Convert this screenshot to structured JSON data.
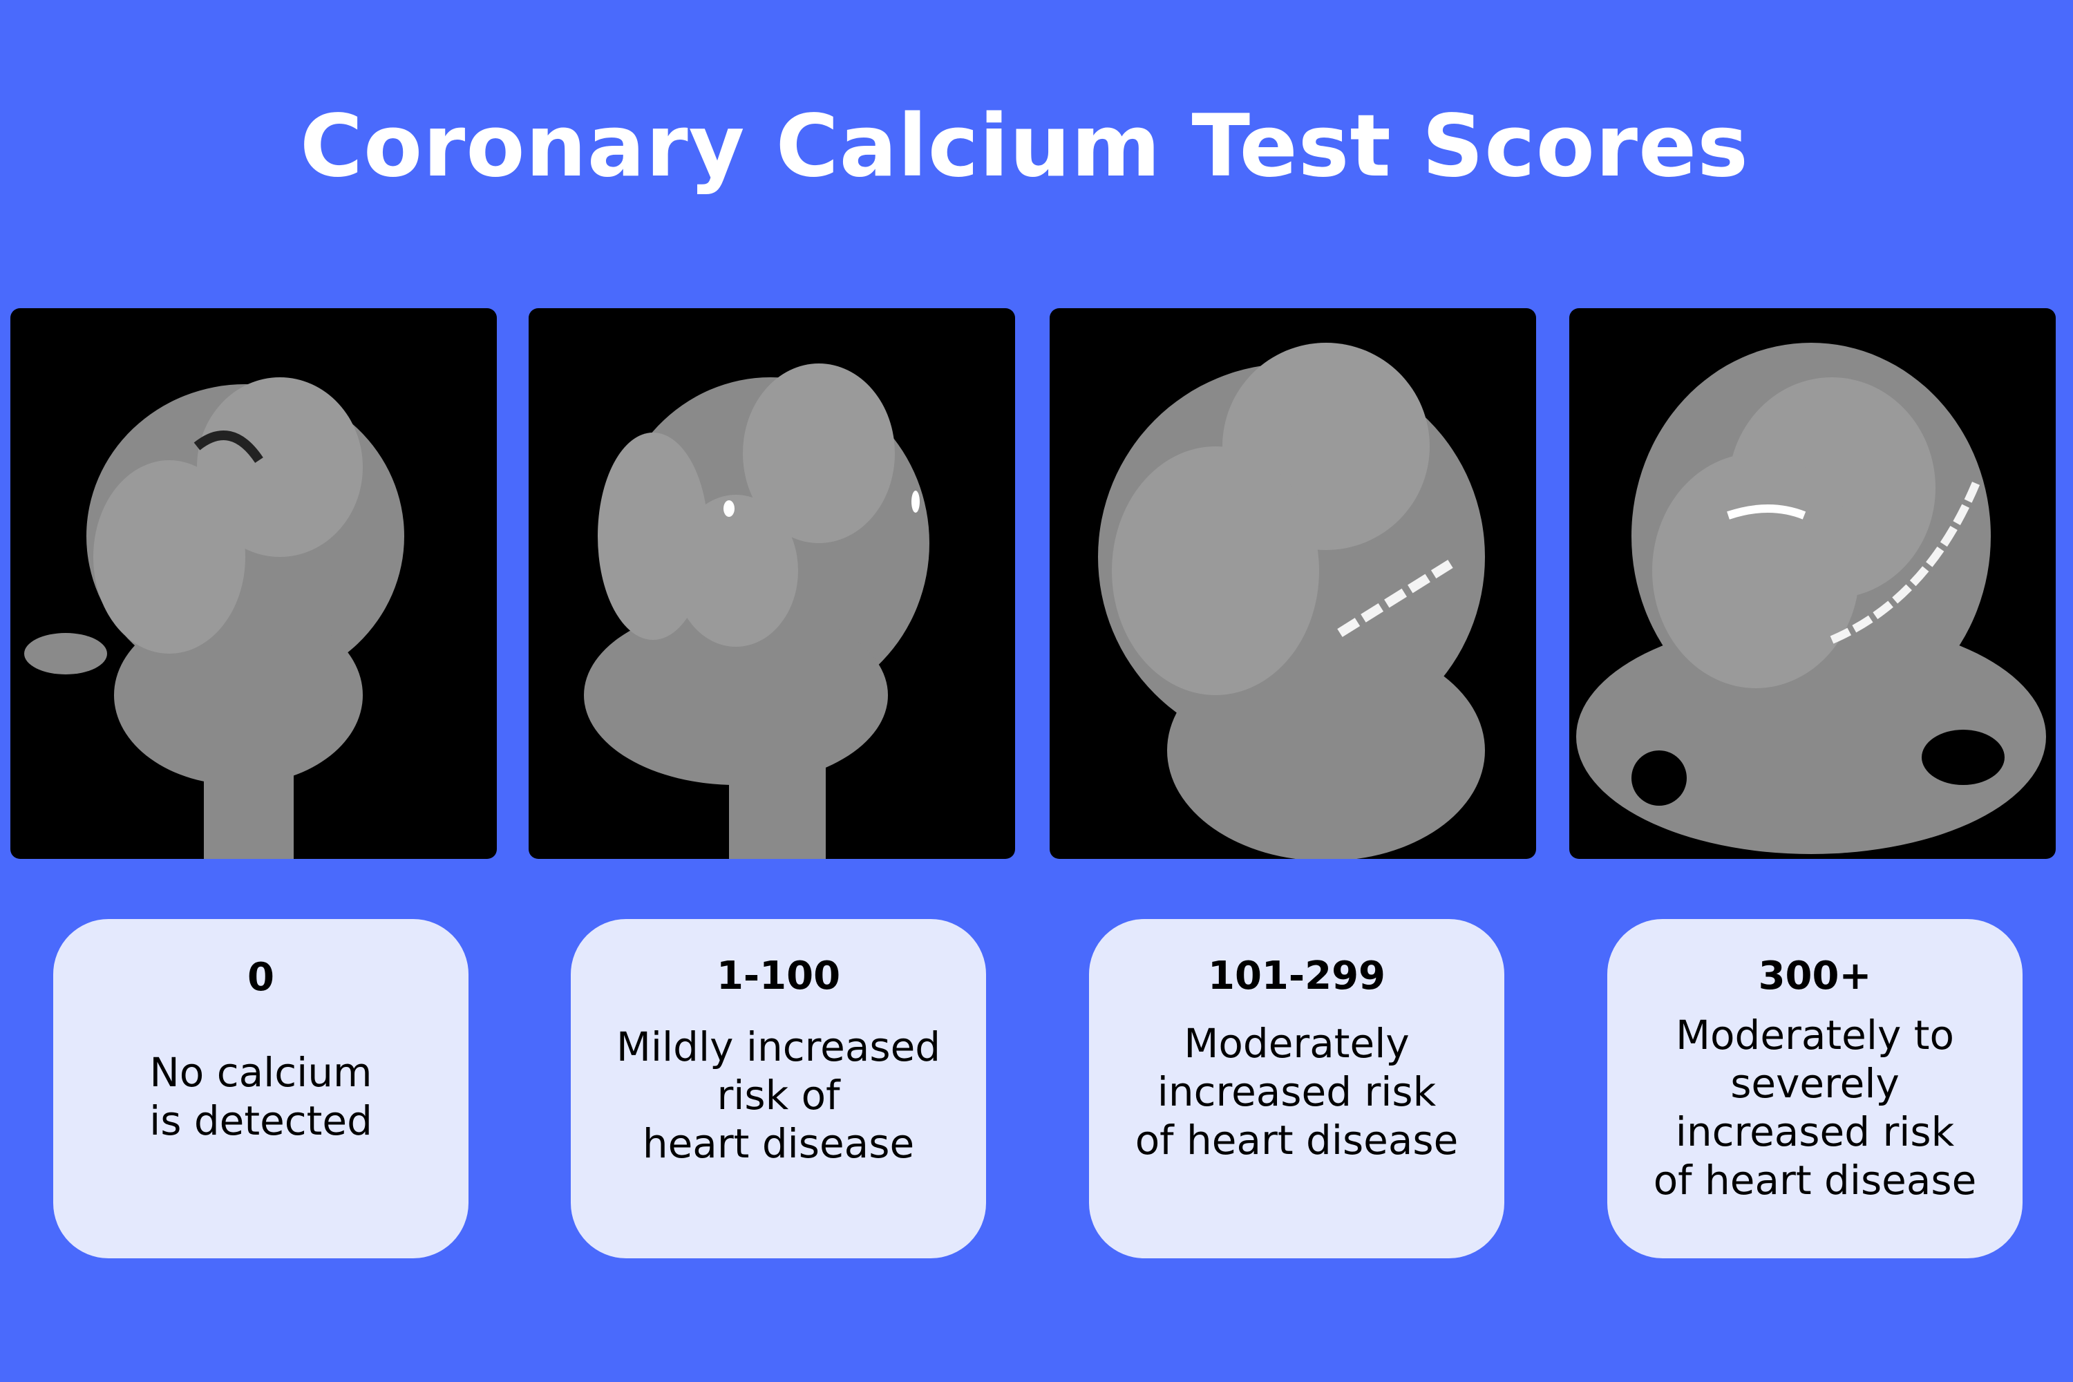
{
  "title": "Coronary Calcium Test Scores",
  "colors": {
    "background": "#4a6afc",
    "card": "#e4e9fd",
    "text": "#000000",
    "title": "#ffffff"
  },
  "panels": [
    {
      "score": "0",
      "description": "No calcium\nis detected",
      "image": "CT scan of heart with no calcification"
    },
    {
      "score": "1-100",
      "description": "Mildly increased\nrisk of\nheart disease",
      "image": "CT scan of heart with small calcifications"
    },
    {
      "score": "101-299",
      "description": "Moderately\nincreased risk\nof heart disease",
      "image": "CT scan of heart with moderate calcification"
    },
    {
      "score": "300+",
      "description": "Moderately to\nseverely\nincreased risk\nof heart disease",
      "image": "CT scan of heart with extensive calcification"
    }
  ]
}
